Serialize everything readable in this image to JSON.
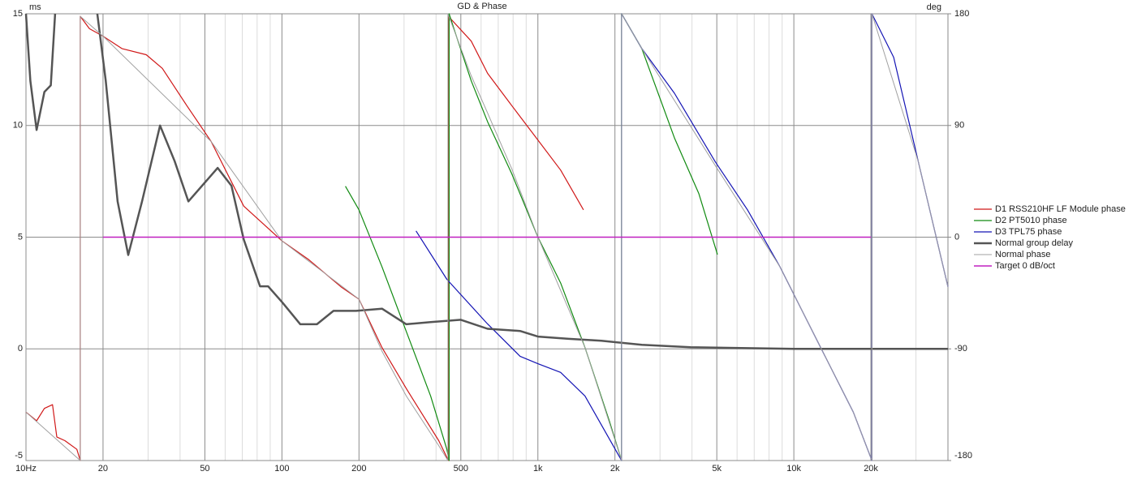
{
  "chart_data": {
    "type": "line",
    "title": "GD & Phase",
    "y_label": "ms",
    "y2_label": "deg",
    "xscale": "log",
    "grid": true,
    "legend": "right",
    "xlim": [
      10,
      40000
    ],
    "ylim": [
      -5,
      15
    ],
    "y2lim": [
      -180,
      180
    ],
    "xticks": [
      {
        "value": 10,
        "label": "10Hz"
      },
      20,
      50,
      100,
      200,
      500,
      {
        "value": 1000,
        "label": "1k"
      },
      {
        "value": 2000,
        "label": "2k"
      },
      {
        "value": 5000,
        "label": "5k"
      },
      {
        "value": 10000,
        "label": "10k"
      },
      {
        "value": 20000,
        "label": "20k"
      }
    ],
    "x_minor_ticks": [
      30,
      40,
      60,
      70,
      80,
      90,
      300,
      400,
      600,
      700,
      800,
      900,
      3000,
      4000,
      6000,
      7000,
      8000,
      9000,
      30000
    ],
    "yticks": [
      -5,
      0,
      5,
      10,
      15
    ],
    "y2ticks": [
      -180,
      -90,
      0,
      90,
      180
    ],
    "series": [
      {
        "name": "D1 RSS210HF LF Module phase",
        "color": "#d01818",
        "axis": "y2",
        "width": 1.2,
        "x": [
          10,
          11,
          11.8,
          12.7,
          13.2,
          14.2,
          15.8,
          16.3,
          16.3,
          17.7,
          20,
          23.7,
          29.5,
          34.1,
          42.5,
          52.9,
          70.9,
          100,
          127,
          170,
          200,
          246,
          306,
          410,
          447,
          447,
          549,
          636,
          791,
          986,
          1227,
          1507
        ],
        "values": [
          -141,
          -148,
          -138,
          -135,
          -161,
          -164,
          -171,
          -180,
          178,
          168,
          162,
          152,
          147,
          136,
          106,
          77,
          25,
          -3,
          -18,
          -40,
          -50,
          -89,
          -122,
          -164,
          -180,
          178,
          158,
          132,
          106,
          80,
          54,
          22
        ]
      },
      {
        "name": "D2 PT5010 phase",
        "color": "#108a10",
        "axis": "y2",
        "width": 1.2,
        "x": [
          177,
          200,
          246,
          306,
          381,
          441,
          450,
          450,
          475,
          549,
          636,
          791,
          1000,
          1227,
          1528,
          1901,
          2124,
          2124,
          2547,
          3415,
          4254,
          5030
        ],
        "values": [
          41,
          22,
          -24,
          -76,
          -128,
          -171,
          -180,
          180,
          165,
          126,
          93,
          51,
          0,
          -37,
          -89,
          -148,
          -180,
          180,
          152,
          80,
          35,
          -14
        ]
      },
      {
        "name": "D3 TPL75 phase",
        "color": "#1414b4",
        "axis": "y2",
        "width": 1.2,
        "x": [
          334,
          441,
          636,
          852,
          1000,
          1227,
          1528,
          2124,
          2124,
          2547,
          3415,
          4920,
          6590,
          8830,
          12730,
          17070,
          20180,
          20180,
          24550,
          30610,
          40000
        ],
        "values": [
          5,
          -34,
          -70,
          -96,
          -102,
          -109,
          -128,
          -180,
          180,
          152,
          116,
          61,
          22,
          -24,
          -89,
          -141,
          -180,
          180,
          145,
          61,
          -40
        ]
      },
      {
        "name": "Normal group delay",
        "color": "#555555",
        "axis": "y",
        "width": 2.5,
        "x": [
          10,
          10.4,
          11,
          11.8,
          12.5,
          13,
          null,
          19,
          20.5,
          22.8,
          25.1,
          28.4,
          33.4,
          38.1,
          43.1,
          56.1,
          63.5,
          70.9,
          82.1,
          88.3,
          100,
          118,
          137,
          159,
          195,
          246,
          306,
          381,
          500,
          636,
          852,
          1000,
          1320,
          1770,
          2547,
          3950,
          10000,
          40000
        ],
        "values": [
          15,
          12,
          9.8,
          11.5,
          11.8,
          15,
          null,
          15,
          12,
          6.6,
          4.2,
          6.6,
          10,
          8.4,
          6.6,
          8.1,
          7.3,
          4.9,
          2.8,
          2.8,
          2.1,
          1.1,
          1.1,
          1.7,
          1.7,
          1.8,
          1.1,
          1.2,
          1.3,
          0.9,
          0.8,
          0.55,
          0.45,
          0.36,
          0.18,
          0.07,
          0,
          0
        ]
      },
      {
        "name": "Normal phase",
        "color": "#a0a0a0",
        "axis": "y2",
        "width": 1,
        "x": [
          10,
          16.3,
          16.3,
          20,
          52.9,
          100,
          200,
          246,
          306,
          410,
          445,
          445,
          549,
          636,
          791,
          1000,
          1528,
          2124,
          2124,
          2547,
          4920,
          8830,
          17070,
          20180,
          20180,
          30610,
          40000
        ],
        "values": [
          -141,
          -180,
          178,
          162,
          77,
          -3,
          -50,
          -92,
          -128,
          -168,
          -180,
          180,
          130,
          100,
          55,
          0,
          -89,
          -180,
          180,
          152,
          58,
          -24,
          -141,
          -180,
          180,
          61,
          -40
        ]
      },
      {
        "name": "Target 0 dB/oct",
        "color": "#c020c0",
        "axis": "y2",
        "width": 1.5,
        "x": [
          20,
          20000
        ],
        "values": [
          0,
          0
        ]
      }
    ]
  }
}
